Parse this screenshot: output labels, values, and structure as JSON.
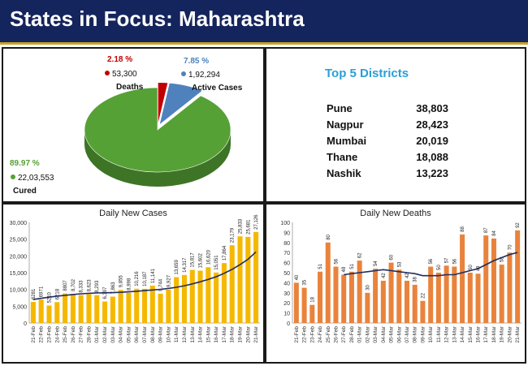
{
  "banner": {
    "title": "States in Focus: Maharashtra"
  },
  "colors": {
    "banner_bg": "#14245c",
    "banner_border": "#c9a227",
    "cured": "#56a135",
    "active": "#4f81bd",
    "deaths": "#c00000",
    "cases_bar": "#f5b800",
    "deaths_bar": "#e9833c",
    "trend": "#1f2d5c",
    "district_title": "#2a9fd6"
  },
  "districts": {
    "title": "Top 5 Districts",
    "rows": [
      {
        "name": "Pune",
        "value": "38,803"
      },
      {
        "name": "Nagpur",
        "value": "28,423"
      },
      {
        "name": "Mumbai",
        "value": "20,019"
      },
      {
        "name": "Thane",
        "value": "18,088"
      },
      {
        "name": "Nashik",
        "value": "13,223"
      }
    ]
  },
  "chart_data": [
    {
      "type": "pie",
      "slices": [
        {
          "name": "Deaths",
          "value": 53300,
          "value_label": "53,300",
          "percent_label": "2.18 %",
          "percent": 2.18,
          "color": "#c00000"
        },
        {
          "name": "Active Cases",
          "value": 192294,
          "value_label": "1,92,294",
          "percent_label": "7.85 %",
          "percent": 7.85,
          "color": "#4f81bd"
        },
        {
          "name": "Cured",
          "value": 2203553,
          "value_label": "22,03,553",
          "percent_label": "89.97 %",
          "percent": 89.97,
          "color": "#56a135"
        }
      ]
    },
    {
      "type": "bar",
      "title": "Daily New Cases",
      "categories": [
        "21-Feb",
        "22-Feb",
        "23-Feb",
        "24-Feb",
        "25-Feb",
        "26-Feb",
        "27-Feb",
        "28-Feb",
        "01-Mar",
        "02-Mar",
        "03-Mar",
        "04-Mar",
        "05-Mar",
        "06-Mar",
        "07-Mar",
        "08-Mar",
        "09-Mar",
        "10-Mar",
        "11-Mar",
        "12-Mar",
        "13-Mar",
        "14-Mar",
        "15-Mar",
        "16-Mar",
        "17-Mar",
        "18-Mar",
        "19-Mar",
        "20-Mar",
        "21-Mar"
      ],
      "values": [
        6281,
        6971,
        5210,
        6218,
        8807,
        8702,
        8333,
        8623,
        8293,
        6397,
        7863,
        9855,
        8998,
        10216,
        10187,
        11141,
        8744,
        9927,
        13659,
        14317,
        15817,
        15602,
        16620,
        15051,
        17864,
        23179,
        25833,
        25681,
        27126
      ],
      "data_labels": [
        "6281",
        "6971",
        "5210",
        "6218",
        "8807",
        "8,702",
        "8,333",
        "8,623",
        "8,293",
        "6,397",
        "7,863",
        "9,855",
        "8,998",
        "10,216",
        "10,187",
        "11,141",
        "8,744",
        "9,927",
        "13,659",
        "14,317",
        "15,817",
        "15,602",
        "16,620",
        "15,051",
        "17,864",
        "23,179",
        "25,833",
        "25,681",
        "27,126"
      ],
      "trend": [
        7000,
        7350,
        7700,
        8000,
        8250,
        8500,
        8700,
        8850,
        8950,
        9000,
        9050,
        9150,
        9300,
        9450,
        9650,
        9850,
        10050,
        10300,
        10650,
        11100,
        11650,
        12300,
        13000,
        13800,
        14800,
        16000,
        17400,
        19000,
        21200
      ],
      "ylim": [
        0,
        30000
      ],
      "yticks": [
        0,
        5000,
        10000,
        15000,
        20000,
        25000,
        30000
      ],
      "grid": false
    },
    {
      "type": "bar",
      "title": "Daily New Deaths",
      "categories": [
        "21-Feb",
        "22-Feb",
        "23-Feb",
        "24-Feb",
        "25-Feb",
        "26-Feb",
        "27-Feb",
        "28-Feb",
        "01-Mar",
        "02-Mar",
        "03-Mar",
        "04-Mar",
        "05-Mar",
        "06-Mar",
        "07-Mar",
        "08-Mar",
        "09-Mar",
        "10-Mar",
        "11-Mar",
        "12-Mar",
        "13-Mar",
        "14-Mar",
        "15-Mar",
        "16-Mar",
        "17-Mar",
        "18-Mar",
        "19-Mar",
        "20-Mar",
        "21-Mar"
      ],
      "values": [
        40,
        35,
        18,
        51,
        80,
        56,
        48,
        51,
        62,
        30,
        54,
        42,
        60,
        53,
        42,
        38,
        22,
        56,
        50,
        57,
        56,
        88,
        50,
        49,
        87,
        84,
        58,
        70,
        92
      ],
      "data_labels": [
        "40",
        "35",
        "18",
        "51",
        "80",
        "56",
        "48",
        "51",
        "62",
        "30",
        "54",
        "42",
        "60",
        "53",
        "42",
        "38",
        "22",
        "56",
        "50",
        "57",
        "56",
        "88",
        "50",
        "49",
        "87",
        "84",
        "58",
        "70",
        "92"
      ],
      "trend": [
        null,
        null,
        null,
        null,
        null,
        null,
        48,
        49,
        50,
        51,
        52,
        53,
        52,
        51,
        50,
        49,
        47,
        47,
        47,
        48,
        48,
        50,
        52,
        54,
        58,
        62,
        65,
        68,
        70
      ],
      "ylim": [
        0,
        100
      ],
      "yticks": [
        0,
        10,
        20,
        30,
        40,
        50,
        60,
        70,
        80,
        90,
        100
      ],
      "grid": false
    }
  ]
}
